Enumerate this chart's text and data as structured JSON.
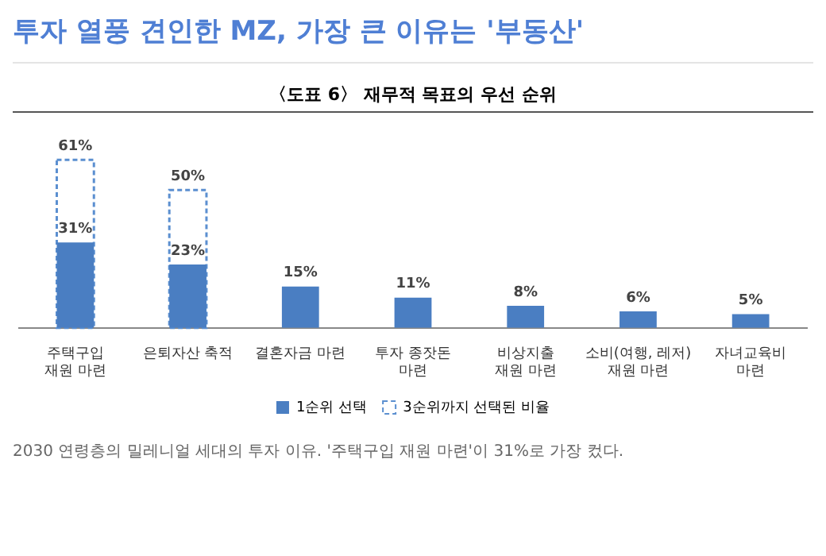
{
  "chart_data": {
    "type": "bar",
    "title": "투자 열풍 견인한 MZ, 가장 큰 이유는 '부동산'",
    "subtitle": "〈도표 6〉 재무적 목표의 우선 순위",
    "categories": [
      "주택구입\n재원 마련",
      "은퇴자산 축적",
      "결혼자금 마련",
      "투자 종잣돈\n마련",
      "비상지출\n재원 마련",
      "소비(여행, 레저)\n재원 마련",
      "자녀교육비\n마련"
    ],
    "series": [
      {
        "name": "1순위 선택",
        "color": "#4a7ec2",
        "values": [
          31,
          23,
          15,
          11,
          8,
          6,
          5
        ],
        "value_labels": [
          "31%",
          "23%",
          "15%",
          "11%",
          "8%",
          "6%",
          "5%"
        ]
      },
      {
        "name": "3순위까지 선택된 비율",
        "color": "#5b8fd0",
        "line_style": "dashed",
        "values": [
          61,
          50,
          null,
          null,
          null,
          null,
          null
        ],
        "value_labels": [
          "61%",
          "50%",
          null,
          null,
          null,
          null,
          null
        ]
      }
    ],
    "legend": "bottom",
    "grid": false,
    "annotations": [
      "2030 연령층의 밀레니얼 세대의 투자 이유. '주택구입 재원 마련'이 31%로 가장 컸다."
    ]
  }
}
